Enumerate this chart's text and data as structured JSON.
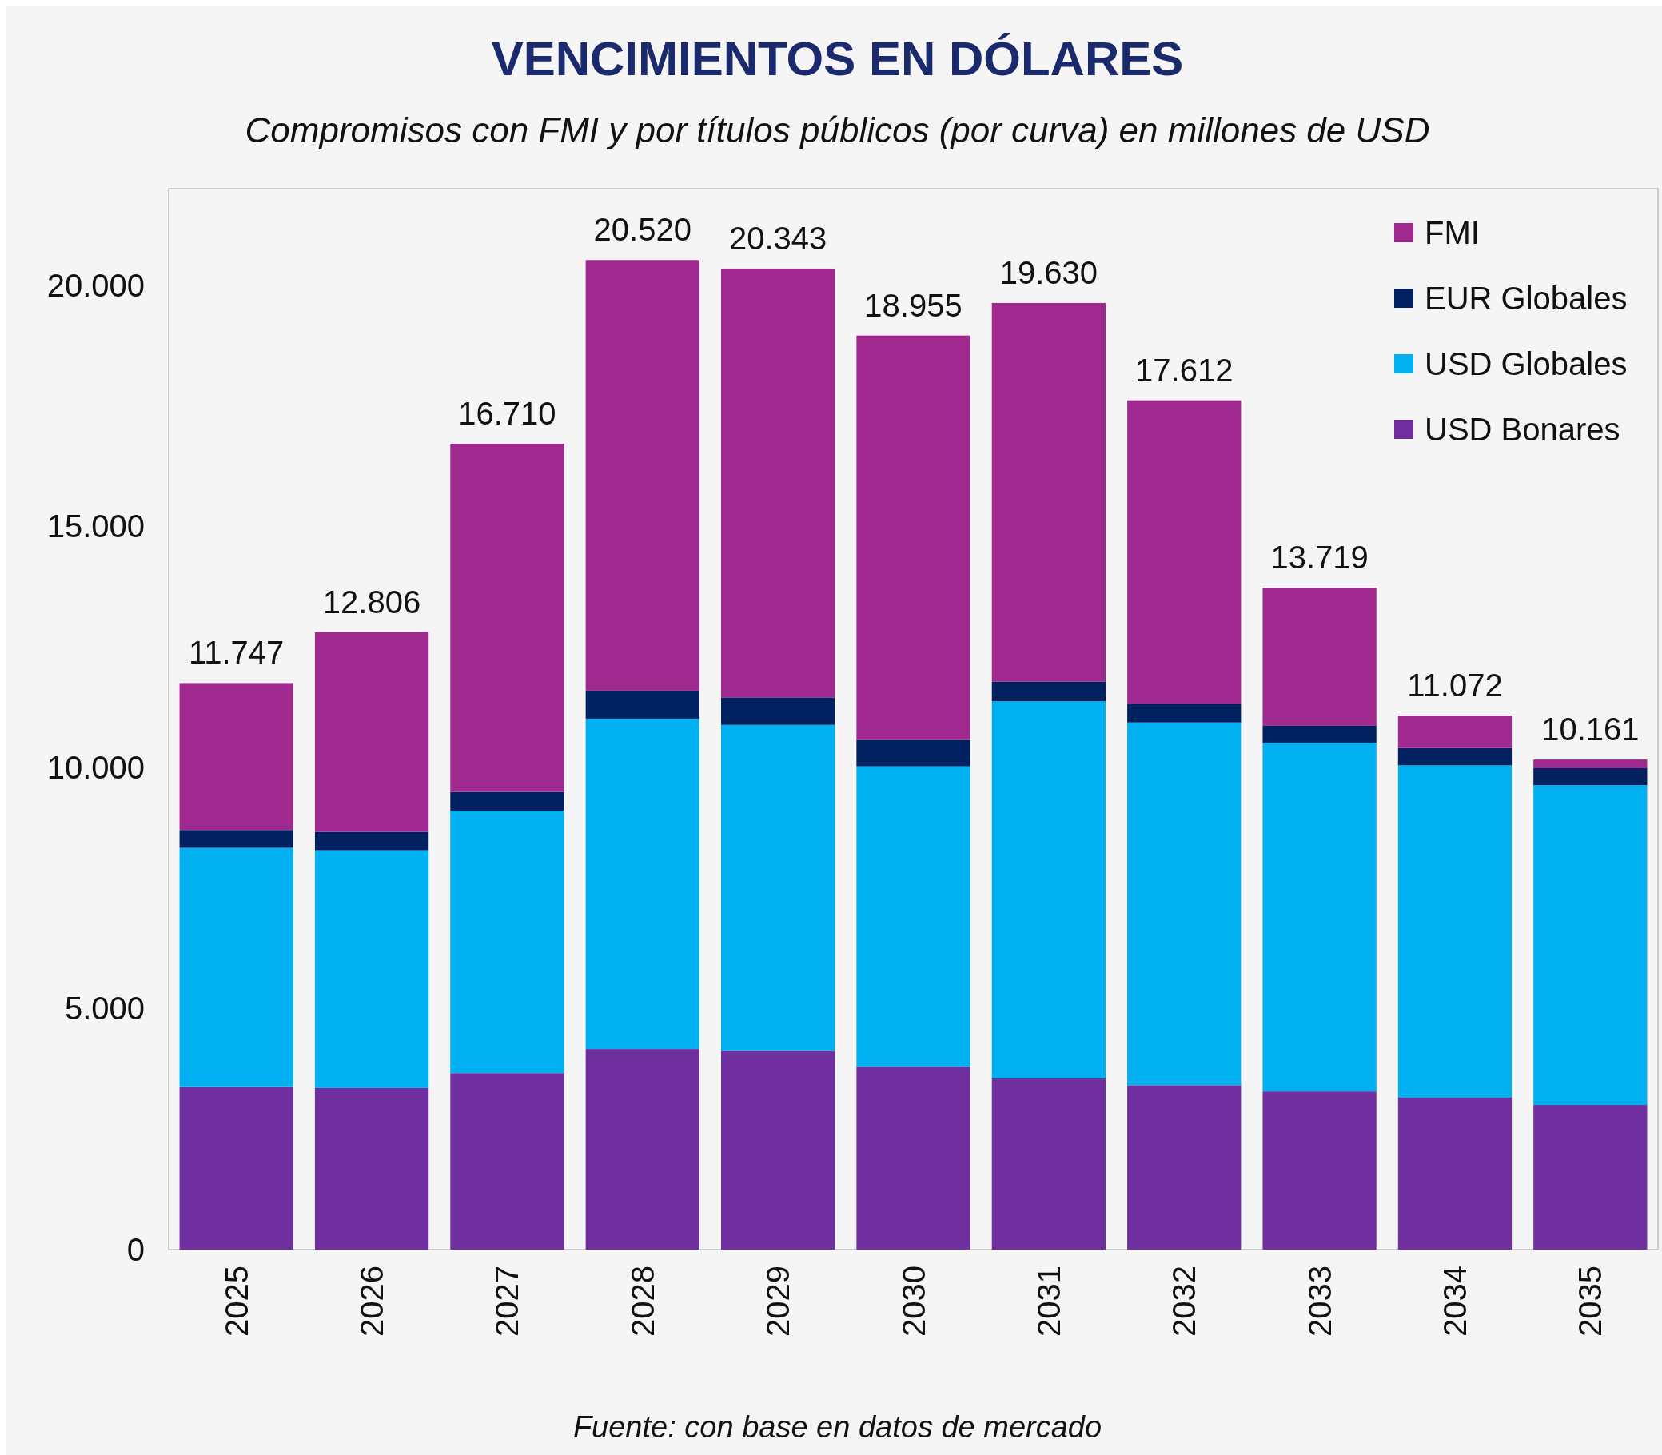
{
  "chart_data": {
    "type": "bar",
    "title": "VENCIMIENTOS EN DÓLARES",
    "subtitle": "Compromisos con FMI y por títulos públicos (por curva) en millones de USD",
    "annotations": [
      "Fuente: con base en datos de mercado"
    ],
    "categories": [
      "2025",
      "2026",
      "2027",
      "2028",
      "2029",
      "2030",
      "2031",
      "2032",
      "2033",
      "2034",
      "2035"
    ],
    "stacked": true,
    "series": [
      {
        "name": "USD Bonares",
        "color": "#7030a0",
        "values": [
          3370,
          3350,
          3660,
          4160,
          4120,
          3790,
          3550,
          3410,
          3280,
          3150,
          3000
        ]
      },
      {
        "name": "USD Globales",
        "color": "#00b0f0",
        "values": [
          4960,
          4930,
          5440,
          6850,
          6760,
          6230,
          7820,
          7520,
          7230,
          6890,
          6630
        ]
      },
      {
        "name": "EUR Globales",
        "color": "#002060",
        "values": [
          370,
          380,
          390,
          580,
          570,
          550,
          410,
          390,
          350,
          360,
          350
        ]
      },
      {
        "name": "FMI",
        "color": "#a0298f",
        "values": [
          3047,
          4146,
          7220,
          8930,
          8893,
          8385,
          7850,
          6292,
          2859,
          672,
          181
        ]
      }
    ],
    "totals": [
      "11.747",
      "12.806",
      "16.710",
      "20.520",
      "20.343",
      "18.955",
      "19.630",
      "17.612",
      "13.719",
      "11.072",
      "10.161"
    ],
    "ylim": [
      0,
      22000
    ],
    "yticks": [
      {
        "value": 0,
        "label": "0"
      },
      {
        "value": 5000,
        "label": "5.000"
      },
      {
        "value": 10000,
        "label": "10.000"
      },
      {
        "value": 15000,
        "label": "15.000"
      },
      {
        "value": 20000,
        "label": "20.000"
      }
    ],
    "grid": false,
    "legend": "top right"
  }
}
